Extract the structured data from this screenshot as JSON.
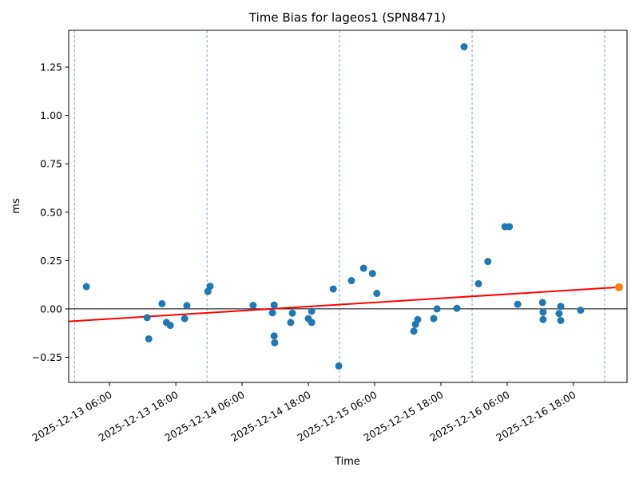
{
  "chart_data": {
    "type": "scatter",
    "title": "Time Bias for lageos1 (SPN8471)",
    "xlabel": "Time",
    "ylabel": "ms",
    "x_unit": "hours since 2025-12-13 00:00",
    "xlim": [
      -1.4,
      99.7
    ],
    "ylim": [
      -0.38,
      1.44
    ],
    "grid": "vertical-dashed-only",
    "yticks": [
      -0.25,
      0.0,
      0.25,
      0.5,
      0.75,
      1.0,
      1.25
    ],
    "ytick_labels": [
      "−0.25",
      "0.00",
      "0.25",
      "0.50",
      "0.75",
      "1.00",
      "1.25"
    ],
    "xticks": [
      {
        "t": 6,
        "label": "2025-12-13 06:00"
      },
      {
        "t": 18,
        "label": "2025-12-13 18:00"
      },
      {
        "t": 30,
        "label": "2025-12-14 06:00"
      },
      {
        "t": 42,
        "label": "2025-12-14 18:00"
      },
      {
        "t": 54,
        "label": "2025-12-15 06:00"
      },
      {
        "t": 66,
        "label": "2025-12-15 18:00"
      },
      {
        "t": 78,
        "label": "2025-12-16 06:00"
      },
      {
        "t": 90,
        "label": "2025-12-16 18:00"
      }
    ],
    "vlines": {
      "t": [
        -0.35,
        23.65,
        47.65,
        71.65,
        95.65
      ],
      "color": "#6fa8dc",
      "style": "dashed"
    },
    "zero_line": {
      "value": 0.0,
      "color": "#000000"
    },
    "scatter": {
      "name": "time-bias-observations",
      "color": "#1f77b4",
      "points": [
        [
          1.8,
          0.115
        ],
        [
          12.8,
          -0.045
        ],
        [
          13.1,
          -0.155
        ],
        [
          15.5,
          0.027
        ],
        [
          16.3,
          -0.07
        ],
        [
          17.0,
          -0.085
        ],
        [
          19.6,
          -0.05
        ],
        [
          20.0,
          0.017
        ],
        [
          23.8,
          0.09
        ],
        [
          24.2,
          0.117
        ],
        [
          32.0,
          0.018
        ],
        [
          35.5,
          -0.02
        ],
        [
          35.8,
          0.02
        ],
        [
          35.8,
          -0.14
        ],
        [
          35.9,
          -0.175
        ],
        [
          38.8,
          -0.07
        ],
        [
          39.1,
          -0.022
        ],
        [
          42.0,
          -0.05
        ],
        [
          42.6,
          -0.012
        ],
        [
          42.6,
          -0.07
        ],
        [
          46.5,
          0.103
        ],
        [
          47.5,
          -0.295
        ],
        [
          49.8,
          0.146
        ],
        [
          52.0,
          0.21
        ],
        [
          53.6,
          0.183
        ],
        [
          54.4,
          0.08
        ],
        [
          61.1,
          -0.115
        ],
        [
          61.4,
          -0.08
        ],
        [
          61.8,
          -0.055
        ],
        [
          64.7,
          -0.05
        ],
        [
          65.3,
          0.0
        ],
        [
          68.9,
          0.003
        ],
        [
          70.2,
          1.355
        ],
        [
          72.8,
          0.13
        ],
        [
          74.5,
          0.245
        ],
        [
          77.6,
          0.425
        ],
        [
          78.4,
          0.425
        ],
        [
          79.9,
          0.024
        ],
        [
          84.4,
          0.033
        ],
        [
          84.5,
          -0.017
        ],
        [
          84.5,
          -0.055
        ],
        [
          87.4,
          -0.024
        ],
        [
          87.7,
          0.013
        ],
        [
          87.7,
          -0.06
        ],
        [
          91.3,
          -0.007
        ]
      ]
    },
    "trend_line": {
      "name": "linear-fit",
      "color": "#ff0000",
      "from": [
        -1.4,
        -0.065
      ],
      "to": [
        98.25,
        0.112
      ]
    },
    "prediction_point": {
      "name": "predicted-bias",
      "color": "#ff7f0e",
      "t": 98.25,
      "v": 0.112
    }
  }
}
